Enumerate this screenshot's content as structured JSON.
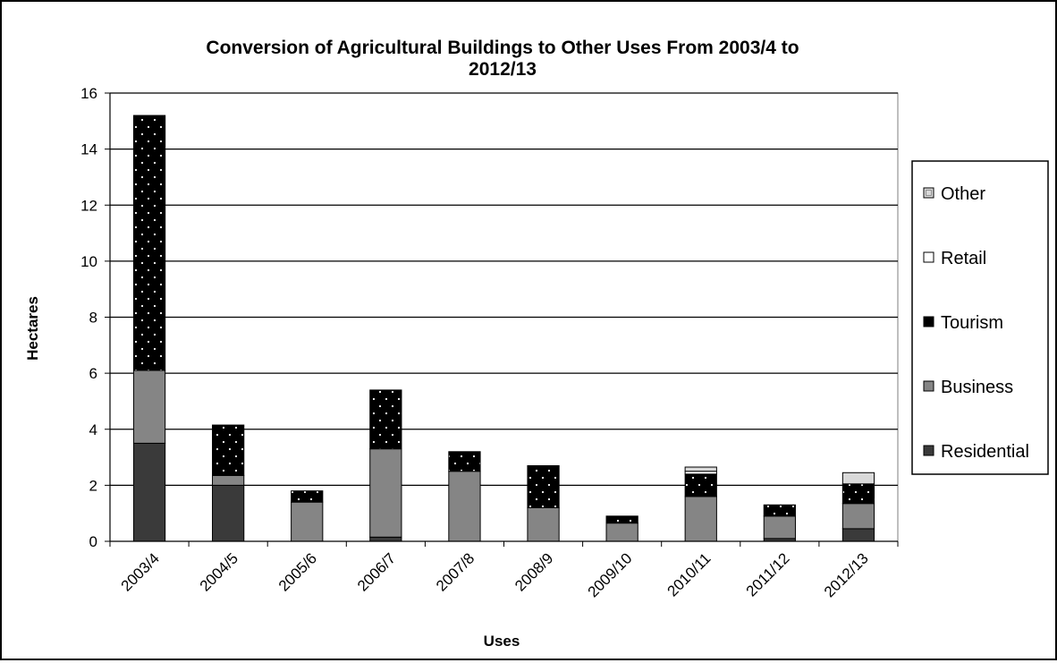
{
  "chart_data": {
    "type": "bar",
    "stacked": true,
    "title": "Conversion of Agricultural Buildings to Other Uses From 2003/4 to 2012/13",
    "xlabel": "Uses",
    "ylabel": "Hectares",
    "ylim": [
      0,
      16
    ],
    "yticks": [
      0,
      2,
      4,
      6,
      8,
      10,
      12,
      14,
      16
    ],
    "grid": true,
    "legend_position": "right",
    "categories": [
      "2003/4",
      "2004/5",
      "2005/6",
      "2006/7",
      "2007/8",
      "2008/9",
      "2009/10",
      "2010/11",
      "2011/12",
      "2012/13"
    ],
    "series": [
      {
        "name": "Residential",
        "color": "#3a3a3a",
        "pattern": "solid",
        "values": [
          3.5,
          2.0,
          0.0,
          0.15,
          0.0,
          0.0,
          0.0,
          0.0,
          0.1,
          0.45
        ]
      },
      {
        "name": "Business",
        "color": "#858585",
        "pattern": "solid",
        "values": [
          2.6,
          0.35,
          1.4,
          3.15,
          2.5,
          1.2,
          0.65,
          1.6,
          0.8,
          0.9
        ]
      },
      {
        "name": "Tourism",
        "color": "#000000",
        "pattern": "dotted",
        "values": [
          9.1,
          1.8,
          0.4,
          2.1,
          0.7,
          1.5,
          0.25,
          0.8,
          0.4,
          0.7
        ]
      },
      {
        "name": "Retail",
        "color": "#ffffff",
        "pattern": "solid",
        "values": [
          0.0,
          0.0,
          0.0,
          0.0,
          0.0,
          0.0,
          0.0,
          0.1,
          0.0,
          0.0
        ]
      },
      {
        "name": "Other",
        "color": "#d9d9d9",
        "pattern": "solid",
        "values": [
          0.0,
          0.0,
          0.0,
          0.0,
          0.0,
          0.0,
          0.0,
          0.15,
          0.0,
          0.4
        ]
      }
    ]
  }
}
